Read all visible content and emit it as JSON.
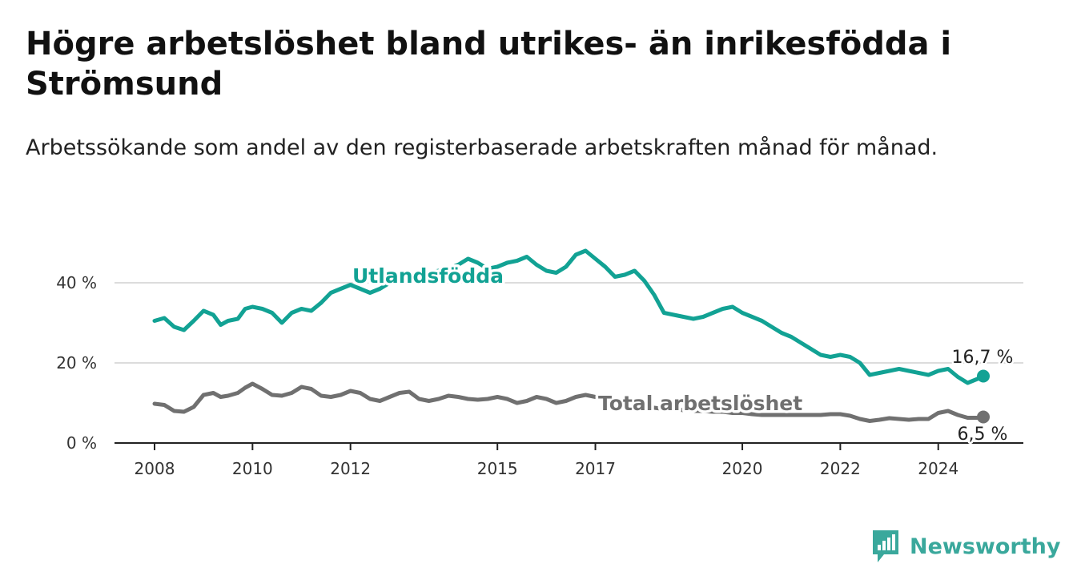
{
  "title": "Högre arbetslöshet bland utrikes- än inrikesfödda i Strömsund",
  "subtitle": "Arbetssökande som andel av den registerbaserade arbetskraften månad för månad.",
  "brand": {
    "name": "Newsworthy",
    "icon": "bar-chart-logo-icon",
    "color": "#3aa89c"
  },
  "chart_data": {
    "type": "line",
    "ylim": [
      0,
      50
    ],
    "xlim": [
      2008.0,
      2025.9
    ],
    "y_ticks": [
      {
        "value": 0,
        "label": "0 %"
      },
      {
        "value": 20,
        "label": "20 %"
      },
      {
        "value": 40,
        "label": "40 %"
      }
    ],
    "x_ticks": [
      {
        "value": 2008,
        "label": "2008"
      },
      {
        "value": 2010,
        "label": "2010"
      },
      {
        "value": 2012,
        "label": "2012"
      },
      {
        "value": 2015,
        "label": "2015"
      },
      {
        "value": 2017,
        "label": "2017"
      },
      {
        "value": 2020,
        "label": "2020"
      },
      {
        "value": 2022,
        "label": "2022"
      },
      {
        "value": 2024,
        "label": "2024"
      }
    ],
    "grid": "horizontal",
    "series": [
      {
        "name": "Utlandsfödda",
        "color": "#12a294",
        "end_label": "16,7 %",
        "x": [
          2008.0,
          2008.2,
          2008.4,
          2008.6,
          2008.8,
          2009.0,
          2009.2,
          2009.35,
          2009.5,
          2009.7,
          2009.85,
          2010.0,
          2010.2,
          2010.4,
          2010.6,
          2010.8,
          2011.0,
          2011.2,
          2011.4,
          2011.6,
          2011.8,
          2012.0,
          2012.2,
          2012.4,
          2012.6,
          2012.8,
          2013.0,
          2013.2,
          2013.4,
          2013.6,
          2013.8,
          2014.0,
          2014.2,
          2014.4,
          2014.6,
          2014.8,
          2015.0,
          2015.2,
          2015.4,
          2015.6,
          2015.8,
          2016.0,
          2016.2,
          2016.4,
          2016.6,
          2016.8,
          2017.0,
          2017.2,
          2017.4,
          2017.6,
          2017.8,
          2018.0,
          2018.2,
          2018.4,
          2018.6,
          2018.8,
          2019.0,
          2019.2,
          2019.4,
          2019.6,
          2019.8,
          2020.0,
          2020.2,
          2020.4,
          2020.6,
          2020.8,
          2021.0,
          2021.2,
          2021.4,
          2021.6,
          2021.8,
          2022.0,
          2022.2,
          2022.4,
          2022.6,
          2022.8,
          2023.0,
          2023.2,
          2023.4,
          2023.6,
          2023.8,
          2024.0,
          2024.2,
          2024.4,
          2024.6,
          2024.8,
          2024.92
        ],
        "values": [
          30.5,
          31.2,
          29.0,
          28.2,
          30.5,
          33.0,
          32.0,
          29.5,
          30.5,
          31.0,
          33.5,
          34.0,
          33.5,
          32.5,
          30.0,
          32.5,
          33.5,
          33.0,
          35.0,
          37.5,
          38.5,
          39.5,
          38.5,
          37.5,
          38.5,
          40.0,
          41.0,
          41.5,
          42.0,
          42.5,
          43.0,
          43.5,
          44.5,
          46.0,
          45.0,
          43.5,
          44.0,
          45.0,
          45.5,
          46.5,
          44.5,
          43.0,
          42.5,
          44.0,
          47.0,
          48.0,
          46.0,
          44.0,
          41.5,
          42.0,
          43.0,
          40.5,
          37.0,
          32.5,
          32.0,
          31.5,
          31.0,
          31.5,
          32.5,
          33.5,
          34.0,
          32.5,
          31.5,
          30.5,
          29.0,
          27.5,
          26.5,
          25.0,
          23.5,
          22.0,
          21.5,
          22.0,
          21.5,
          20.0,
          17.0,
          17.5,
          18.0,
          18.5,
          18.0,
          17.5,
          17.0,
          18.0,
          18.5,
          16.5,
          15.0,
          16.0,
          16.7
        ]
      },
      {
        "name": "Total arbetslöshet",
        "color": "#707070",
        "end_label": "6,5 %",
        "x": [
          2008.0,
          2008.2,
          2008.4,
          2008.6,
          2008.8,
          2009.0,
          2009.2,
          2009.35,
          2009.5,
          2009.7,
          2009.85,
          2010.0,
          2010.2,
          2010.4,
          2010.6,
          2010.8,
          2011.0,
          2011.2,
          2011.4,
          2011.6,
          2011.8,
          2012.0,
          2012.2,
          2012.4,
          2012.6,
          2012.8,
          2013.0,
          2013.2,
          2013.4,
          2013.6,
          2013.8,
          2014.0,
          2014.2,
          2014.4,
          2014.6,
          2014.8,
          2015.0,
          2015.2,
          2015.4,
          2015.6,
          2015.8,
          2016.0,
          2016.2,
          2016.4,
          2016.6,
          2016.8,
          2017.0,
          2017.2,
          2017.4,
          2017.6,
          2017.8,
          2018.0,
          2018.2,
          2018.4,
          2018.6,
          2018.8,
          2019.0,
          2019.2,
          2019.4,
          2019.6,
          2019.8,
          2020.0,
          2020.2,
          2020.4,
          2020.6,
          2020.8,
          2021.0,
          2021.2,
          2021.4,
          2021.6,
          2021.8,
          2022.0,
          2022.2,
          2022.4,
          2022.6,
          2022.8,
          2023.0,
          2023.2,
          2023.4,
          2023.6,
          2023.8,
          2024.0,
          2024.2,
          2024.4,
          2024.6,
          2024.8,
          2024.92
        ],
        "values": [
          9.8,
          9.5,
          8.0,
          7.8,
          9.0,
          12.0,
          12.5,
          11.5,
          11.8,
          12.5,
          13.8,
          14.8,
          13.5,
          12.0,
          11.8,
          12.5,
          14.0,
          13.5,
          11.8,
          11.5,
          12.0,
          13.0,
          12.5,
          11.0,
          10.5,
          11.5,
          12.5,
          12.8,
          11.0,
          10.5,
          11.0,
          11.8,
          11.5,
          11.0,
          10.8,
          11.0,
          11.5,
          11.0,
          10.0,
          10.5,
          11.5,
          11.0,
          10.0,
          10.5,
          11.5,
          12.0,
          11.5,
          10.8,
          10.0,
          9.8,
          9.5,
          9.0,
          8.8,
          8.5,
          8.5,
          8.2,
          8.0,
          8.0,
          7.8,
          7.8,
          7.5,
          7.5,
          7.2,
          7.0,
          7.0,
          7.0,
          7.0,
          7.0,
          7.0,
          7.0,
          7.2,
          7.2,
          6.8,
          6.0,
          5.5,
          5.8,
          6.2,
          6.0,
          5.8,
          6.0,
          6.0,
          7.5,
          8.0,
          7.0,
          6.3,
          6.3,
          6.5
        ]
      }
    ]
  }
}
